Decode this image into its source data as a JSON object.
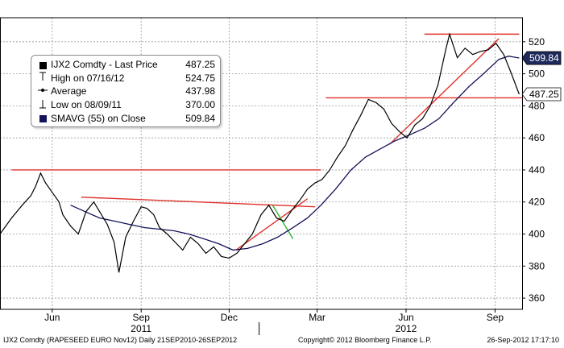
{
  "chart_data": {
    "type": "line",
    "instrument": "IJX2 Comdty",
    "legend": [
      {
        "marker": "price-square-icon",
        "label": "IJX2 Comdty - Last Price",
        "value": "487.25"
      },
      {
        "marker": "high-marker-icon",
        "label": "High on 07/16/12",
        "value": "524.75"
      },
      {
        "marker": "average-marker-icon",
        "label": "Average",
        "value": "437.98"
      },
      {
        "marker": "low-marker-icon",
        "label": "Low on 08/09/11",
        "value": "370.00"
      },
      {
        "marker": "smavg-square-icon",
        "label": "SMAVG (55) on Close",
        "value": "509.84"
      }
    ],
    "y_axis": {
      "ticks": [
        "360",
        "380",
        "400",
        "420",
        "440",
        "460",
        "480",
        "500",
        "520"
      ],
      "ylim": [
        353,
        535
      ],
      "side": "right",
      "price_tag": {
        "label": "487.25",
        "value": 487.25,
        "color": "#ffffff"
      },
      "ma_tag": {
        "label": "509.84",
        "value": 509.84,
        "color": "#1e2a5c"
      }
    },
    "x_axis": {
      "month_labels": [
        "Jun",
        "Sep",
        "Dec",
        "Mar",
        "Jun",
        "Sep"
      ],
      "month_values": [
        "2011-06-01",
        "2011-09-01",
        "2011-12-01",
        "2012-03-01",
        "2012-06-01",
        "2012-09-01"
      ],
      "year_labels": [
        "2011",
        "2012"
      ],
      "year_values": [
        "2011-09-01",
        "2012-06-01"
      ],
      "xlim": [
        "2011-04-08",
        "2012-09-29"
      ],
      "separator": "2012-01-01"
    },
    "grid": true,
    "price_series": {
      "name": "IJX2 Comdty - Last Price",
      "color": "#000000",
      "dates": [
        "2011-04-08",
        "2011-04-20",
        "2011-05-01",
        "2011-05-10",
        "2011-05-15",
        "2011-05-20",
        "2011-05-25",
        "2011-06-01",
        "2011-06-08",
        "2011-06-12",
        "2011-06-20",
        "2011-06-28",
        "2011-07-06",
        "2011-07-14",
        "2011-07-20",
        "2011-07-28",
        "2011-08-04",
        "2011-08-09",
        "2011-08-16",
        "2011-08-24",
        "2011-09-01",
        "2011-09-07",
        "2011-09-14",
        "2011-09-20",
        "2011-09-28",
        "2011-10-06",
        "2011-10-14",
        "2011-10-22",
        "2011-10-30",
        "2011-11-07",
        "2011-11-15",
        "2011-11-23",
        "2011-12-01",
        "2011-12-09",
        "2011-12-17",
        "2011-12-25",
        "2012-01-03",
        "2012-01-11",
        "2012-01-19",
        "2012-01-27",
        "2012-02-04",
        "2012-02-12",
        "2012-02-20",
        "2012-02-28",
        "2012-03-06",
        "2012-03-14",
        "2012-03-22",
        "2012-03-30",
        "2012-04-07",
        "2012-04-15",
        "2012-04-23",
        "2012-05-01",
        "2012-05-09",
        "2012-05-17",
        "2012-05-25",
        "2012-06-02",
        "2012-06-10",
        "2012-06-18",
        "2012-06-26",
        "2012-07-04",
        "2012-07-12",
        "2012-07-16",
        "2012-07-24",
        "2012-08-01",
        "2012-08-09",
        "2012-08-17",
        "2012-08-25",
        "2012-09-02",
        "2012-09-10",
        "2012-09-18",
        "2012-09-26"
      ],
      "values": [
        400,
        410,
        418,
        424,
        430,
        438,
        432,
        426,
        420,
        412,
        405,
        400,
        414,
        420,
        414,
        406,
        395,
        376,
        398,
        408,
        417,
        416,
        412,
        404,
        400,
        395,
        390,
        398,
        394,
        388,
        392,
        386,
        385,
        388,
        394,
        400,
        412,
        418,
        410,
        408,
        415,
        421,
        428,
        432,
        434,
        440,
        448,
        455,
        465,
        474,
        484,
        482,
        478,
        469,
        464,
        460,
        468,
        472,
        480,
        493,
        515,
        524.75,
        510,
        516,
        512,
        514,
        515,
        519,
        512,
        500,
        487.25
      ]
    },
    "ma_series": {
      "name": "SMAVG (55) on Close",
      "color": "#14125a",
      "dates": [
        "2011-06-20",
        "2011-07-05",
        "2011-07-20",
        "2011-08-05",
        "2011-08-20",
        "2011-09-05",
        "2011-09-20",
        "2011-10-05",
        "2011-10-20",
        "2011-11-05",
        "2011-11-20",
        "2011-12-05",
        "2011-12-20",
        "2012-01-05",
        "2012-01-20",
        "2012-02-05",
        "2012-02-20",
        "2012-03-05",
        "2012-03-20",
        "2012-04-05",
        "2012-04-20",
        "2012-05-05",
        "2012-05-20",
        "2012-06-05",
        "2012-06-20",
        "2012-07-05",
        "2012-07-20",
        "2012-08-05",
        "2012-08-20",
        "2012-09-05",
        "2012-09-15",
        "2012-09-26"
      ],
      "values": [
        418,
        414,
        410,
        408,
        406,
        404,
        403,
        402,
        400,
        397,
        394,
        390,
        391,
        394,
        398,
        404,
        410,
        418,
        428,
        440,
        448,
        453,
        458,
        462,
        466,
        472,
        482,
        492,
        500,
        509,
        511,
        509.84
      ]
    },
    "avg_value": 437.98,
    "lines": [
      {
        "name": "high-resistance-line",
        "color": "#e0302a",
        "x1": "2012-06-20",
        "y1": 524.75,
        "x2": "2012-09-26",
        "y2": 524.75
      },
      {
        "name": "current-support-line",
        "color": "#e0302a",
        "x1": "2012-03-10",
        "y1": 485,
        "x2": "2012-09-29",
        "y2": 485
      },
      {
        "name": "march-resistance-line",
        "color": "#e0302a",
        "x1": "2011-04-20",
        "y1": 440,
        "x2": "2012-03-05",
        "y2": 440
      },
      {
        "name": "autumn-resistance-line",
        "color": "#e0302a",
        "x1": "2011-07-01",
        "y1": 423,
        "x2": "2012-02-28",
        "y2": 417
      },
      {
        "name": "winter-trend-line",
        "color": "#e0302a",
        "x1": "2011-12-08",
        "y1": 390,
        "x2": "2012-02-20",
        "y2": 422
      },
      {
        "name": "summer-trend-line",
        "color": "#e0302a",
        "x1": "2012-05-15",
        "y1": 456,
        "x2": "2012-09-05",
        "y2": 522
      },
      {
        "name": "breakout-line",
        "color": "#2db52d",
        "x1": "2012-01-15",
        "y1": 418,
        "x2": "2012-02-05",
        "y2": 397
      }
    ]
  },
  "footer": {
    "left": "IJX2 Comdty (RAPESEED EURO  Nov12) Daily 21SEP2010-26SEP2012",
    "center": "Copyright© 2012 Bloomberg Finance L.P.",
    "right": "26-Sep-2012 17:17:10"
  }
}
